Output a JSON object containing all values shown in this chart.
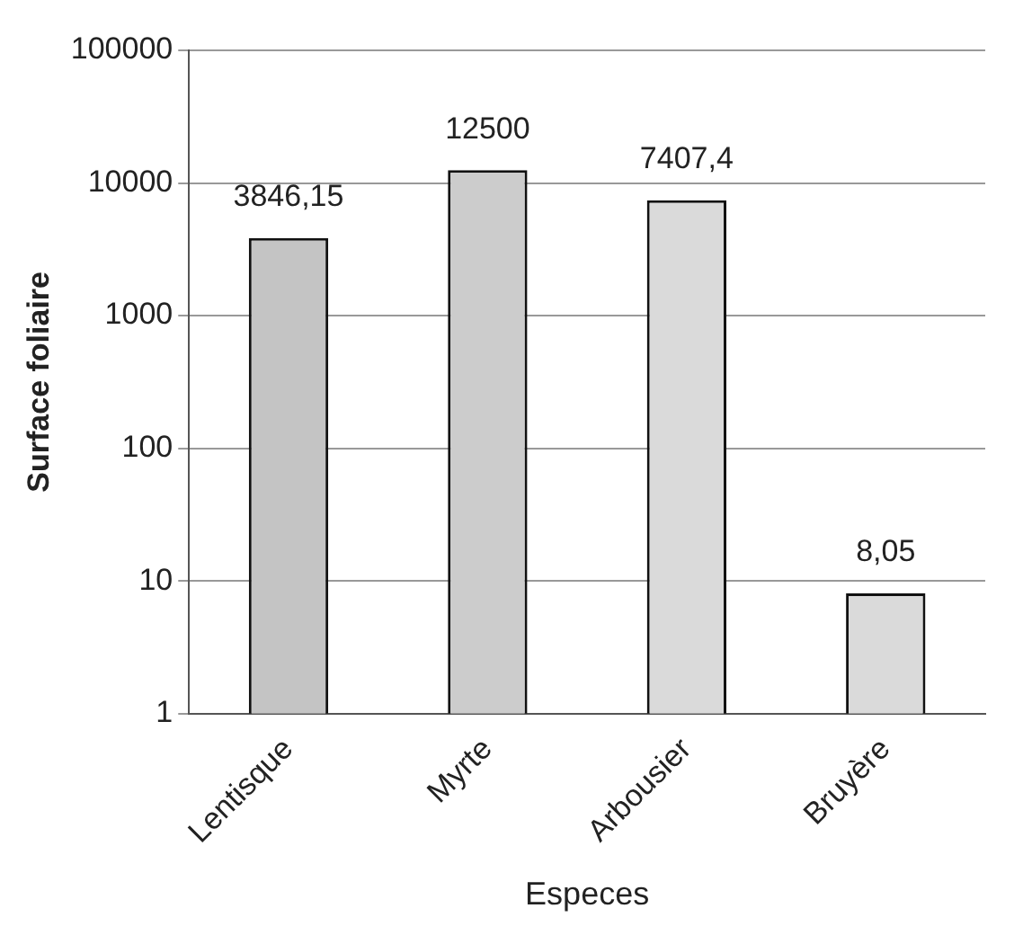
{
  "chart_data": {
    "type": "bar",
    "xlabel": "Especes",
    "ylabel": "Surface foliaire",
    "categories": [
      "Lentisque",
      "Myrte",
      "Arbousier",
      "Bruyère"
    ],
    "values": [
      3846.15,
      12500,
      7407.4,
      8.05
    ],
    "value_labels": [
      "3846,15",
      "12500",
      "7407,4",
      "8,05"
    ],
    "colors": [
      "#c4c4c4",
      "#cccccc",
      "#dadada",
      "#dadada"
    ],
    "log": "y",
    "ylim": [
      1,
      100000
    ],
    "yticks": [
      1,
      10,
      100,
      1000,
      10000,
      100000
    ],
    "grid": "y",
    "legend": false
  }
}
